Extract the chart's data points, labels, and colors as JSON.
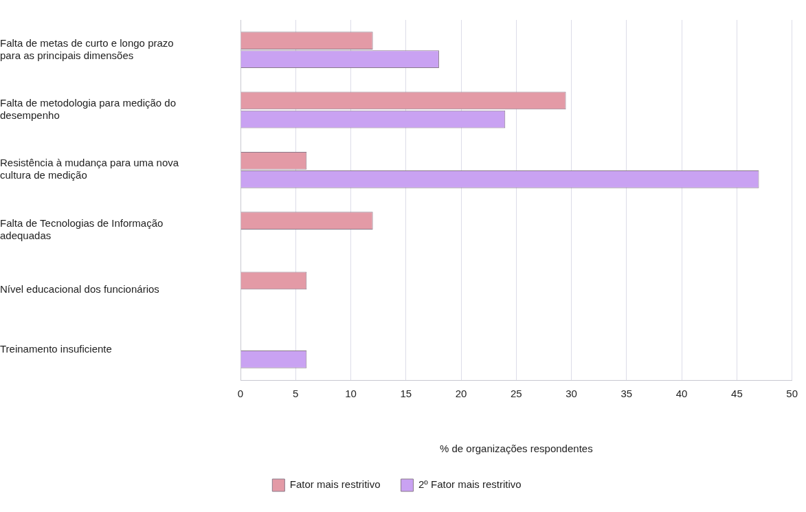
{
  "chart_data": {
    "type": "bar",
    "orientation": "horizontal",
    "xlabel": "% de organizações respondentes",
    "categories": [
      "Falta de metas de curto e longo prazo para as principais dimensões",
      "Falta de metodologia para medição do desempenho",
      "Resistência à mudança para uma nova cultura de medição",
      "Falta de Tecnologias de Informação adequadas",
      "Nível educacional dos funcionários",
      "Treinamento insuficiente"
    ],
    "series": [
      {
        "name": "Fator mais restritivo",
        "color": "#e39aa6",
        "values": [
          12,
          29.5,
          6,
          12,
          6,
          0
        ]
      },
      {
        "name": "2º Fator mais restritivo",
        "color": "#c9a2f2",
        "values": [
          18,
          24,
          47,
          0,
          0,
          6
        ]
      }
    ],
    "xlim": [
      0,
      50
    ],
    "xticks": [
      0,
      5,
      10,
      15,
      20,
      25,
      30,
      35,
      40,
      45,
      50
    ],
    "grid": "x",
    "legend": "bottom"
  }
}
